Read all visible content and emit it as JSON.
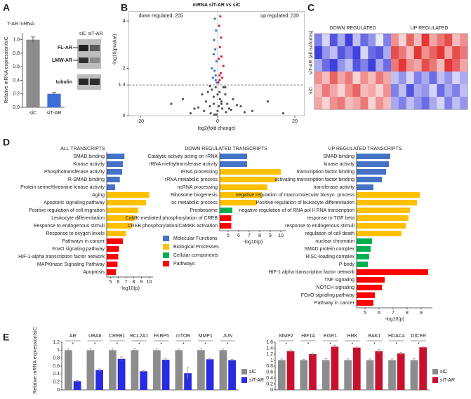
{
  "panel_labels": [
    "A",
    "B",
    "C",
    "D",
    "E"
  ],
  "blot": {
    "lanes": [
      "siC",
      "siT-AR"
    ],
    "bands": [
      "FL-AR",
      "LMW-AR",
      "tubulin"
    ]
  },
  "chart_data": [
    {
      "type": "bar",
      "title": "T-AR mRNA",
      "ylabel": "Relative mRNA expression/siC",
      "categories": [
        "siC",
        "siT-AR"
      ],
      "values": [
        1.0,
        0.2
      ],
      "errors": [
        0.04,
        0.02
      ],
      "colors": [
        "#8c8c8c",
        "#3d6fd8"
      ],
      "ylim": [
        0,
        1.1
      ],
      "yticks": [
        {
          "value": 0,
          "label": "0.0"
        },
        0.2,
        0.4,
        0.6,
        0.8,
        {
          "value": 1,
          "label": "1.0"
        }
      ]
    },
    {
      "type": "scatter",
      "title": "mRNA siT-AR vs siC",
      "xlabel": "log2(fold change)",
      "ylabel": "-log10(pvalue)",
      "annotations": [
        "down regulated: 205",
        "up regulated: 239"
      ],
      "xlim": [
        -23,
        22.5
      ],
      "ylim": [
        0,
        4.4
      ],
      "xticks": [
        -20,
        0,
        20
      ],
      "yticks": [
        0,
        1.3,
        2,
        4
      ],
      "hline": 1.3,
      "vline": 0,
      "series": [
        {
          "color": "#555555",
          "x": [
            -12,
            -9,
            -6,
            -4,
            -3,
            -2.5,
            -2,
            -1.5,
            -1,
            -0.5,
            0,
            0.5,
            1,
            1.5,
            2,
            2.5,
            3,
            4,
            6,
            9,
            13,
            17,
            -1.8,
            -0.8,
            0.3,
            1.2,
            2.2,
            -3.5,
            3.5,
            -7,
            7,
            -1,
            1,
            0,
            -0.3,
            0.6,
            -2,
            2,
            -5,
            5
          ],
          "y": [
            0.5,
            0.7,
            0.3,
            0.9,
            0.6,
            1.0,
            0.4,
            1.1,
            0.8,
            1.2,
            0.2,
            1.0,
            0.6,
            1.2,
            0.9,
            0.5,
            0.3,
            0.7,
            0.4,
            0.2,
            0.6,
            0.1,
            0.1,
            0.05,
            0.4,
            0.3,
            0.15,
            0.2,
            0.25,
            0.1,
            0.15,
            0.5,
            0.5,
            0.9,
            0.05,
            0.7,
            1.25,
            1.2,
            0.35,
            0.45
          ]
        },
        {
          "color": "#2f7fd0",
          "x": [
            -0.5,
            -0.8,
            -0.3,
            -1.2,
            -0.6,
            -0.9,
            -0.4,
            -1.5,
            -0.7,
            -0.2,
            -1.0,
            -0.5
          ],
          "y": [
            1.5,
            1.9,
            2.3,
            1.6,
            2.8,
            3.2,
            3.6,
            2.0,
            4.1,
            1.4,
            2.6,
            1.7
          ]
        },
        {
          "color": "#e0203a",
          "x": [
            0.5,
            0.8,
            0.3,
            1.2,
            0.6,
            0.9,
            0.4,
            1.5,
            0.7,
            0.2,
            1.0,
            0.5
          ],
          "y": [
            1.5,
            1.8,
            2.4,
            1.6,
            2.9,
            3.3,
            3.8,
            2.1,
            4.2,
            1.4,
            2.5,
            1.7
          ]
        }
      ]
    },
    {
      "type": "heatmap",
      "column_labels": [
        "DOWN REGULATED",
        "UP REGULATED"
      ],
      "row_labels": [
        "siT-AR (all isoforms)",
        "siC"
      ],
      "cmap": [
        "#2b2bd9",
        "#ffffff",
        "#e02020"
      ],
      "values": [
        [
          -0.6,
          -0.2,
          -0.8,
          -0.4,
          -0.9,
          -0.3,
          -0.7,
          -0.5,
          -0.1,
          -0.6,
          0.5,
          0.2,
          0.7,
          0.3,
          0.9,
          0.4,
          0.6,
          0.8,
          0.3,
          0.5
        ],
        [
          -0.9,
          -0.5,
          -0.3,
          -0.8,
          -0.6,
          -0.9,
          -0.2,
          -0.7,
          -0.8,
          -0.4,
          0.8,
          0.6,
          0.3,
          0.9,
          0.5,
          0.7,
          0.9,
          0.4,
          0.8,
          0.6
        ],
        [
          -0.4,
          -0.7,
          -0.9,
          -0.5,
          -0.3,
          -0.8,
          -0.6,
          -0.9,
          -0.4,
          -0.7,
          0.6,
          0.9,
          0.5,
          0.4,
          0.8,
          0.6,
          0.3,
          0.9,
          0.7,
          0.4
        ],
        [
          0.5,
          0.3,
          0.7,
          0.4,
          0.6,
          0.2,
          0.5,
          0.3,
          0.6,
          0.4,
          -0.3,
          -0.5,
          -0.2,
          -0.6,
          -0.4,
          -0.7,
          -0.3,
          -0.5,
          -0.2,
          -0.4
        ],
        [
          0.3,
          0.6,
          0.4,
          0.2,
          0.5,
          0.7,
          0.3,
          0.4,
          0.2,
          0.5,
          -0.6,
          -0.3,
          -0.8,
          -0.4,
          -0.5,
          -0.2,
          -0.7,
          -0.4,
          -0.6,
          -0.3
        ],
        [
          0.4,
          0.2,
          0.5,
          0.6,
          0.3,
          0.4,
          0.6,
          0.2,
          0.5,
          0.3,
          -0.4,
          -0.6,
          -0.3,
          -0.5,
          -0.7,
          -0.4,
          -0.2,
          -0.6,
          -0.3,
          -0.5
        ]
      ]
    },
    {
      "type": "hbar",
      "title": "ALL TRANSCRIPTS",
      "xlabel": "-log10(p)",
      "categories": [
        "SMAD binding",
        "Kinase activity",
        "Phosphotransferase activity",
        "R-SMAD binding",
        "Protein serine/threonine kinase activity",
        "Aging",
        "Apoptotic signaling pathway",
        "Positive regulation of cell migration",
        "Leukocyte differentiation",
        "Response to endogenous stimuli",
        "Response to oxygen levels",
        "Pathways in cancer",
        "FoxO signaling pathway",
        "HIF-1-alpha transcription factor network",
        "MAPKinase Signaling Pathway",
        "Apoptosis"
      ],
      "values": [
        6.8,
        6.6,
        6.5,
        6.2,
        5.6,
        10.0,
        9.6,
        8.6,
        8.2,
        7.8,
        7.0,
        6.6,
        6.1,
        6.0,
        5.9,
        5.7
      ],
      "colors": [
        "#4472c4",
        "#4472c4",
        "#4472c4",
        "#4472c4",
        "#4472c4",
        "#ffc000",
        "#ffc000",
        "#ffc000",
        "#ffc000",
        "#ffc000",
        "#ffc000",
        "#ff0000",
        "#ff0000",
        "#ff0000",
        "#ff0000",
        "#ff0000"
      ],
      "xlim": [
        4.5,
        10.5
      ],
      "xticks": [
        5,
        6,
        7,
        8,
        9,
        10
      ]
    },
    {
      "type": "hbar",
      "title": "DOWN REGULATED TRANSCRIPTS",
      "xlabel": "-log10(p)",
      "categories": [
        "Catalytic activity acting on rRNA",
        "rRNA methyltransferase activity",
        "rRNA processing",
        "rRNA metabolic process",
        "ncRNA processing",
        "Ribosome biogenesis",
        "nc metabolic process",
        "Preribosome",
        "CaMK-mediated phosphorylation of CREB",
        "CREB phosphorylation/CaMKK activation"
      ],
      "values": [
        6.8,
        6.8,
        10.0,
        9.6,
        8.7,
        8.2,
        7.7,
        5.4,
        5.3,
        5.3
      ],
      "colors": [
        "#4472c4",
        "#4472c4",
        "#ffc000",
        "#ffc000",
        "#ffc000",
        "#ffc000",
        "#ffc000",
        "#00b050",
        "#ff0000",
        "#ff0000"
      ],
      "xlim": [
        4.2,
        10.5
      ],
      "xticks": [
        5,
        6,
        7,
        8,
        9,
        10
      ],
      "legend": [
        {
          "name": "Molecular Functions",
          "color": "#4472c4"
        },
        {
          "name": "Biological Processes",
          "color": "#ffc000"
        },
        {
          "name": "Cellular components",
          "color": "#00b050"
        },
        {
          "name": "Pathways",
          "color": "#ff0000"
        }
      ]
    },
    {
      "type": "hbar",
      "title": "UP REGULATED TRANSCRIPTS",
      "xlabel": "-log10(p)",
      "categories": [
        "SMAD binding",
        "kinase activity",
        "transcription factor binding",
        "activating transcription factor binding",
        "transferase activity",
        "negative regulation of macromolecular biosyn. process",
        "Positive regulation of leukocyte differentiation",
        "negative regulation of of RNA pol II RNA transcription",
        "response to TGF beta",
        "response to endogenous stimuli",
        "regulation of cell death",
        "nuclear chromatin",
        "SMAD protein complex",
        "RISC-loading complex",
        "P-body",
        "HIF-1 alpha transcription factor network",
        "TNF signaling",
        "NOTCH signaling",
        "FOxO signaling pathway",
        "Pathway in cancer"
      ],
      "values": [
        6.8,
        6.7,
        6.5,
        6.2,
        5.6,
        8.9,
        8.7,
        8.2,
        8.1,
        7.9,
        7.6,
        5.5,
        5.4,
        5.3,
        5.2,
        9.5,
        6.4,
        6.2,
        5.7,
        5.6
      ],
      "colors": [
        "#4472c4",
        "#4472c4",
        "#4472c4",
        "#4472c4",
        "#4472c4",
        "#ffc000",
        "#ffc000",
        "#ffc000",
        "#ffc000",
        "#ffc000",
        "#ffc000",
        "#00b050",
        "#00b050",
        "#00b050",
        "#00b050",
        "#ff0000",
        "#ff0000",
        "#ff0000",
        "#ff0000",
        "#ff0000"
      ],
      "xlim": [
        4.4,
        9.8
      ],
      "xticks": [
        5,
        6,
        7,
        8,
        9
      ]
    },
    {
      "type": "grouped_bar",
      "ylabel": "Relative mRNA expression/siC",
      "categories": [
        "AR",
        "UBA6",
        "CREB1",
        "BCL2A1",
        "FKBP5",
        "mTOR",
        "MMP1",
        "JUN"
      ],
      "significance": [
        "*",
        "*",
        "*",
        "*",
        "*",
        "*",
        "*",
        "*"
      ],
      "series": [
        {
          "name": "siC",
          "color": "#8c8c8c",
          "values": [
            1,
            1,
            1,
            1,
            1,
            1,
            1,
            1
          ],
          "errors": [
            0.03,
            0.03,
            0.03,
            0.03,
            0.03,
            0.03,
            0.03,
            0.03
          ]
        },
        {
          "name": "siT-AR",
          "color": "#2a2ae0",
          "values": [
            0.22,
            0.5,
            0.78,
            0.47,
            0.76,
            0.42,
            0.77,
            0.75
          ],
          "errors": [
            0.02,
            0.03,
            0.05,
            0.02,
            0.03,
            0.15,
            0.02,
            0.02
          ]
        }
      ],
      "ylim": [
        0,
        1.2
      ],
      "yticks": [
        0,
        0.2,
        0.4,
        0.6,
        0.8,
        1,
        1.2
      ]
    },
    {
      "type": "grouped_bar",
      "categories": [
        "MMP2",
        "HIF1A",
        "EGR1",
        "HRK",
        "BAK1",
        "HDAC4",
        "DICER"
      ],
      "significance": [
        "*",
        "*",
        "*",
        "*",
        "*",
        "*",
        "*"
      ],
      "series": [
        {
          "name": "siC",
          "color": "#8c8c8c",
          "values": [
            1,
            1,
            1,
            1,
            1,
            1,
            1
          ],
          "errors": [
            0.04,
            0.03,
            0.05,
            0.04,
            0.04,
            0.04,
            0.05
          ]
        },
        {
          "name": "siT-AR",
          "color": "#c8102e",
          "values": [
            1.3,
            1.2,
            1.45,
            1.42,
            1.3,
            1.22,
            1.43
          ],
          "errors": [
            0.04,
            0.04,
            0.05,
            0.04,
            0.05,
            0.04,
            0.03
          ]
        }
      ],
      "ylim": [
        0,
        1.6
      ],
      "yticks": [
        0,
        0.2,
        0.4,
        0.6,
        0.8,
        1,
        1.2,
        1.4,
        1.6
      ]
    }
  ]
}
